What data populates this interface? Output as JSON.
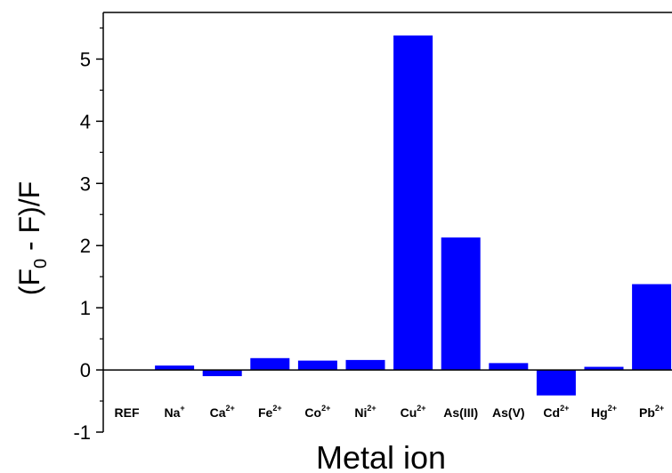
{
  "chart_data": {
    "type": "bar",
    "categories": [
      {
        "base": "REF",
        "sup": ""
      },
      {
        "base": "Na",
        "sup": "+"
      },
      {
        "base": "Ca",
        "sup": "2+"
      },
      {
        "base": "Fe",
        "sup": "2+"
      },
      {
        "base": "Co",
        "sup": "2+"
      },
      {
        "base": "Ni",
        "sup": "2+"
      },
      {
        "base": "Cu",
        "sup": "2+"
      },
      {
        "base": "As(III)",
        "sup": ""
      },
      {
        "base": "As(V)",
        "sup": ""
      },
      {
        "base": "Cd",
        "sup": "2+"
      },
      {
        "base": "Hg",
        "sup": "2+"
      },
      {
        "base": "Pb",
        "sup": "2+"
      }
    ],
    "values": [
      0,
      0.07,
      -0.1,
      0.19,
      0.15,
      0.16,
      5.38,
      2.13,
      0.11,
      -0.41,
      0.05,
      1.38
    ],
    "xlabel": "Metal ion",
    "ylabel": {
      "prefix": "(F",
      "sub": "0",
      "suffix": " - F)/F"
    },
    "ylim": [
      -1,
      5.75
    ],
    "yticks": [
      -1,
      0,
      1,
      2,
      3,
      4,
      5
    ],
    "bar_color": "#0000ff",
    "grid": false,
    "legend": "none"
  }
}
